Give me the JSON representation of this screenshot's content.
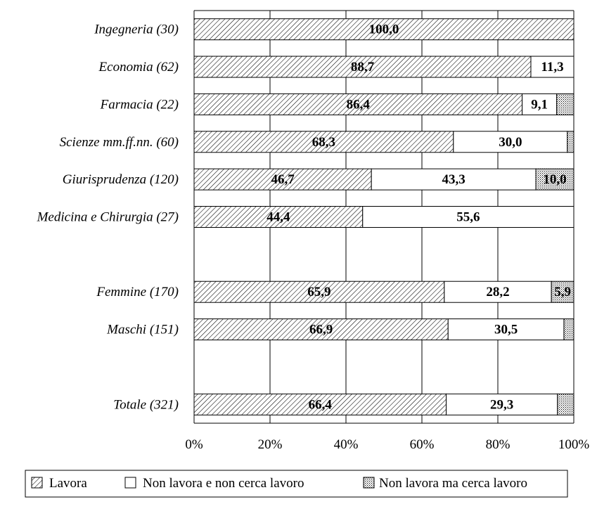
{
  "chart_data": {
    "type": "bar",
    "orientation": "horizontal",
    "stacked": "percent",
    "categories": [
      "Ingegneria (30)",
      "Economia (62)",
      "Farmacia (22)",
      "Scienze mm.ff.nn. (60)",
      "Giurisprudenza (120)",
      "Medicina e Chirurgia (27)",
      "",
      "Femmine (170)",
      "Maschi (151)",
      "",
      "Totale (321)"
    ],
    "series": [
      {
        "name": "Lavora",
        "pattern": "diagonal-hatch",
        "values": [
          100.0,
          88.7,
          86.4,
          68.3,
          46.7,
          44.4,
          null,
          65.9,
          66.9,
          null,
          66.4
        ],
        "labels": [
          "100,0",
          "88,7",
          "86,4",
          "68,3",
          "46,7",
          "44,4",
          "",
          "65,9",
          "66,9",
          "",
          "66,4"
        ]
      },
      {
        "name": "Non lavora e non cerca lavoro",
        "pattern": "white",
        "values": [
          0,
          11.3,
          9.1,
          30.0,
          43.3,
          55.6,
          null,
          28.2,
          30.5,
          null,
          29.3
        ],
        "labels": [
          "",
          "11,3",
          "9,1",
          "30,0",
          "43,3",
          "55,6",
          "",
          "28,2",
          "30,5",
          "",
          "29,3"
        ]
      },
      {
        "name": "Non lavora ma cerca lavoro",
        "pattern": "dotted",
        "values": [
          0,
          0,
          4.5,
          1.7,
          10.0,
          0,
          null,
          5.9,
          2.6,
          null,
          4.3
        ],
        "labels": [
          "",
          "",
          "",
          "",
          "10,0",
          "",
          "",
          "5,9",
          "",
          "",
          ""
        ]
      }
    ],
    "x_ticks": [
      "0%",
      "20%",
      "40%",
      "60%",
      "80%",
      "100%"
    ],
    "xlim": [
      0,
      100
    ],
    "grid": "vertical",
    "legend_position": "bottom",
    "title": "",
    "xlabel": "",
    "ylabel": ""
  }
}
